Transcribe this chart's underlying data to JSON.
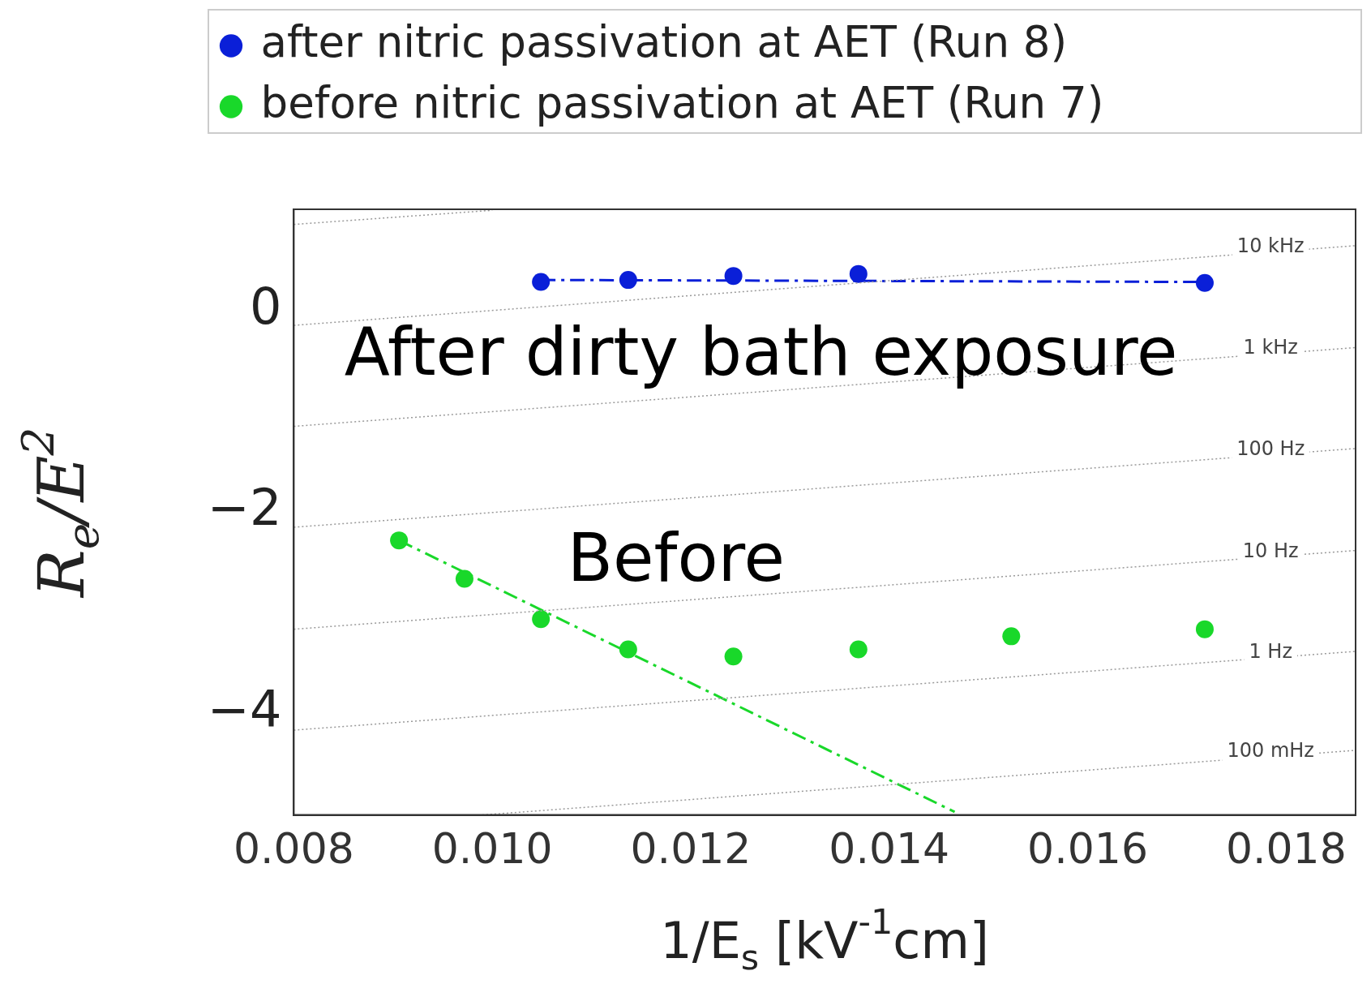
{
  "chart_data": {
    "type": "scatter",
    "xlabel": "1/E$_{s}$ [kV$^{-1}$cm]",
    "ylabel": "R$_{e}$/E$^{2}$",
    "xlim": [
      0.008,
      0.0187
    ],
    "ylim": [
      -5,
      1
    ],
    "xticks": [
      {
        "value": 0.008,
        "label": "0.008"
      },
      {
        "value": 0.01,
        "label": "0.010"
      },
      {
        "value": 0.012,
        "label": "0.012"
      },
      {
        "value": 0.014,
        "label": "0.014"
      },
      {
        "value": 0.016,
        "label": "0.016"
      },
      {
        "value": 0.018,
        "label": "0.018"
      }
    ],
    "yticks": [
      {
        "value": 0,
        "label": "0"
      },
      {
        "value": -2,
        "label": "−2"
      },
      {
        "value": -4,
        "label": "−4"
      }
    ],
    "grid": false,
    "legend": "top",
    "marker": "circle",
    "series": [
      {
        "type": "line",
        "color": "#9a9a9a",
        "line_style": "dotted",
        "marker": "none",
        "x": [
          0.008,
          0.01
        ],
        "values": [
          0.85,
          0.99
        ]
      },
      {
        "type": "line",
        "name": "10 kHz",
        "color": "#9a9a9a",
        "line_style": "dotted",
        "marker": "none",
        "x": [
          0.008,
          0.0187
        ],
        "values": [
          -0.15,
          0.64
        ]
      },
      {
        "type": "line",
        "name": "1 kHz",
        "color": "#9a9a9a",
        "line_style": "dotted",
        "marker": "none",
        "x": [
          0.008,
          0.0187
        ],
        "values": [
          -1.15,
          -0.37
        ]
      },
      {
        "type": "line",
        "name": "100 Hz",
        "color": "#9a9a9a",
        "line_style": "dotted",
        "marker": "none",
        "x": [
          0.008,
          0.0187
        ],
        "values": [
          -2.15,
          -1.37
        ]
      },
      {
        "type": "line",
        "name": "10 Hz",
        "color": "#9a9a9a",
        "line_style": "dotted",
        "marker": "none",
        "x": [
          0.008,
          0.0187
        ],
        "values": [
          -3.16,
          -2.38
        ]
      },
      {
        "type": "line",
        "name": "1 Hz",
        "color": "#9a9a9a",
        "line_style": "dotted",
        "marker": "none",
        "x": [
          0.008,
          0.0187
        ],
        "values": [
          -4.16,
          -3.38
        ]
      },
      {
        "type": "line",
        "name": "100 mHz",
        "color": "#9a9a9a",
        "line_style": "dotted",
        "marker": "none",
        "x": [
          0.0099,
          0.0187
        ],
        "values": [
          -5.0,
          -4.36
        ]
      },
      {
        "type": "scatter",
        "name": "after nitric passivation at AET (Run 8)",
        "color": "#0a1fd8",
        "x": [
          0.01049,
          0.01137,
          0.01243,
          0.01369,
          0.01718
        ],
        "values": [
          0.28,
          0.3,
          0.34,
          0.36,
          0.27
        ]
      },
      {
        "type": "scatter",
        "name": "before nitric passivation at AET (Run 7)",
        "color": "#19d82a",
        "x": [
          0.00906,
          0.00972,
          0.01049,
          0.01137,
          0.01243,
          0.01369,
          0.01523,
          0.01718
        ],
        "values": [
          -2.28,
          -2.66,
          -3.06,
          -3.36,
          -3.43,
          -3.36,
          -3.23,
          -3.16
        ]
      },
      {
        "type": "line",
        "color": "#0a1fd8",
        "line_style": "dashed",
        "marker": "none",
        "x": [
          0.01049,
          0.01718
        ],
        "values": [
          0.3,
          0.28
        ]
      },
      {
        "type": "line",
        "color": "#19d82a",
        "line_style": "dashed",
        "marker": "none",
        "x": [
          0.00906,
          0.01466
        ],
        "values": [
          -2.28,
          -4.97
        ]
      }
    ],
    "annotations": [
      "After dirty bath exposure",
      "Before"
    ]
  }
}
